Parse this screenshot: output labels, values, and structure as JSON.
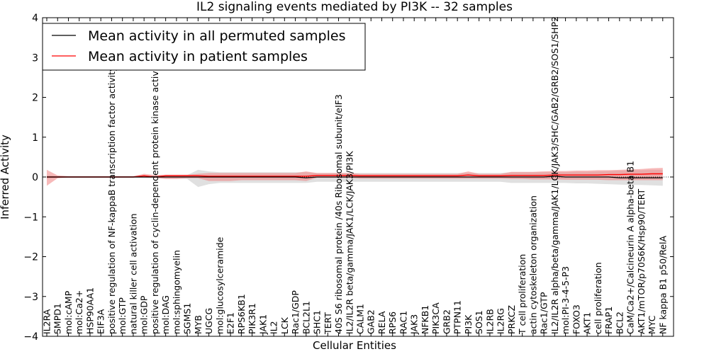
{
  "chart_data": {
    "type": "line",
    "title": "IL2 signaling events mediated by PI3K -- 32 samples",
    "xlabel": "Cellular Entities",
    "ylabel": "Inferred Activity",
    "ylim": [
      -4,
      4
    ],
    "yticks": [
      "4",
      "3",
      "2",
      "1",
      "0",
      "−1",
      "−2",
      "−3",
      "−4"
    ],
    "ytick_values": [
      4,
      3,
      2,
      1,
      0,
      -1,
      -2,
      -3,
      -4
    ],
    "legend_position": "top-left",
    "colors": {
      "permuted": "#000000",
      "permuted_band": "#bbbbbb",
      "patient": "#ff0000",
      "patient_band": "#f08080"
    },
    "categories": [
      "IL2RA",
      "SMPD1",
      "mol:cAMP",
      "mol:Ca2+",
      "HSP90AA1",
      "EIF3A",
      "positive regulation of NF-kappaB transcription factor activity",
      "mol:GTP",
      "natural killer cell activation",
      "mol:GDP",
      "positive regulation of cyclin-dependent protein kinase activity",
      "mol:DAG",
      "mol:sphingomyelin",
      "SGMS1",
      "MYB",
      "UGCG",
      "mol:glucosylceramide",
      "E2F1",
      "RPS6KB1",
      "PIK3R1",
      "JAK1",
      "IL2",
      "LCK",
      "Rac1/GDP",
      "BCL2L1",
      "SHC1",
      "TERT",
      "40S S6 ribosomal protein /40s Ribosomal subunit/eIF3",
      "IL2/IL2R beta/gamma/JAK1/LCK/JAK3/PI3K",
      "CALM1",
      "GAB2",
      "RELA",
      "RPS6",
      "RAC1",
      "JAK3",
      "NFKB1",
      "PIK3CA",
      "GRB2",
      "PTPN11",
      "PI3K",
      "SOS1",
      "IL2RB",
      "IL2RG",
      "PRKCZ",
      "T cell proliferation",
      "actin cytoskeleton organization",
      "Rac1/GTP",
      "IL2/IL2R alpha/beta/gamma/JAK1/LCK/JAK3/SHC/GAB2/GRB2/SOS1/SHP2",
      "mol:PI-3-4-5-P3",
      "FOXO3",
      "AKT1",
      "cell proliferation",
      "FRAP1",
      "BCL2",
      "CaM/Ca2+/Calcineurin A alpha-beta B1",
      "AKT1/mTOR/p70S6K/Hsp90/TERT",
      "MYC",
      "NF kappa B1 p50/RelA"
    ],
    "series": [
      {
        "name": "Mean activity in all permuted samples",
        "values": [
          0,
          0,
          0,
          0,
          0,
          0,
          0,
          0,
          0,
          0,
          0,
          0,
          0,
          0,
          0,
          0,
          0,
          0,
          0,
          0,
          0,
          0,
          0,
          0,
          -0.02,
          0,
          0,
          0,
          0,
          0,
          0,
          0,
          0,
          0,
          0,
          0,
          0,
          0,
          0,
          0,
          0,
          0,
          0,
          0,
          0,
          0,
          0,
          0.02,
          0,
          0,
          0,
          0,
          0,
          -0.02,
          -0.02,
          -0.02,
          -0.02,
          -0.02
        ],
        "band_lower": [
          -0.05,
          -0.02,
          -0.02,
          -0.02,
          -0.02,
          -0.02,
          -0.02,
          -0.02,
          -0.02,
          -0.03,
          -0.03,
          -0.04,
          -0.04,
          -0.05,
          -0.25,
          -0.18,
          -0.15,
          -0.15,
          -0.15,
          -0.15,
          -0.15,
          -0.15,
          -0.15,
          -0.15,
          -0.15,
          -0.12,
          -0.12,
          -0.12,
          -0.12,
          -0.12,
          -0.12,
          -0.12,
          -0.12,
          -0.12,
          -0.12,
          -0.12,
          -0.12,
          -0.12,
          -0.12,
          -0.12,
          -0.12,
          -0.12,
          -0.12,
          -0.15,
          -0.15,
          -0.15,
          -0.15,
          -0.15,
          -0.15,
          -0.16,
          -0.16,
          -0.17,
          -0.18,
          -0.19,
          -0.2,
          -0.2,
          -0.21,
          -0.22
        ],
        "band_upper": [
          0.05,
          0.02,
          0.02,
          0.02,
          0.02,
          0.02,
          0.02,
          0.02,
          0.02,
          0.03,
          0.03,
          0.04,
          0.04,
          0.05,
          0.18,
          0.14,
          0.12,
          0.12,
          0.12,
          0.12,
          0.12,
          0.12,
          0.12,
          0.12,
          0.12,
          0.1,
          0.1,
          0.1,
          0.1,
          0.1,
          0.1,
          0.1,
          0.1,
          0.1,
          0.1,
          0.1,
          0.1,
          0.1,
          0.1,
          0.1,
          0.1,
          0.1,
          0.1,
          0.12,
          0.12,
          0.12,
          0.12,
          0.12,
          0.12,
          0.13,
          0.13,
          0.14,
          0.15,
          0.16,
          0.17,
          0.17,
          0.18,
          0.18
        ]
      },
      {
        "name": "Mean activity in patient samples",
        "values": [
          0,
          0,
          0,
          0,
          0,
          0,
          0,
          0,
          0,
          0.03,
          0,
          0.03,
          0.03,
          0.03,
          0.03,
          0.02,
          0.02,
          0.02,
          0.02,
          0.02,
          0.02,
          0.02,
          0.02,
          0.02,
          0.02,
          0.04,
          0.04,
          0.04,
          0.04,
          0.03,
          0.03,
          0.03,
          0.03,
          0.03,
          0.03,
          0.03,
          0.03,
          0.03,
          0.03,
          0.05,
          0.03,
          0.03,
          0.03,
          0.04,
          0.04,
          0.04,
          0.04,
          0.05,
          0.05,
          0.05,
          0.05,
          0.05,
          0.06,
          0.06,
          0.07,
          0.07,
          0.08,
          0.08
        ],
        "band_lower": [
          -0.22,
          -0.03,
          -0.01,
          -0.01,
          -0.01,
          -0.01,
          -0.01,
          -0.01,
          -0.01,
          -0.01,
          -0.02,
          -0.05,
          -0.05,
          -0.03,
          -0.03,
          -0.1,
          -0.1,
          -0.1,
          -0.08,
          -0.08,
          -0.08,
          -0.08,
          -0.08,
          -0.08,
          -0.1,
          -0.02,
          -0.02,
          -0.02,
          -0.02,
          -0.04,
          -0.04,
          -0.04,
          -0.04,
          -0.04,
          -0.04,
          -0.04,
          -0.04,
          -0.04,
          -0.04,
          -0.04,
          -0.04,
          -0.04,
          -0.04,
          -0.05,
          -0.05,
          -0.06,
          -0.06,
          -0.06,
          -0.07,
          -0.07,
          -0.07,
          -0.07,
          -0.08,
          -0.08,
          -0.08,
          -0.08,
          -0.08,
          -0.08
        ],
        "band_upper": [
          0.18,
          0.04,
          0.02,
          0.02,
          0.02,
          0.02,
          0.02,
          0.02,
          0.02,
          0.08,
          0.05,
          0.06,
          0.06,
          0.06,
          0.08,
          0.1,
          0.1,
          0.1,
          0.1,
          0.1,
          0.1,
          0.1,
          0.1,
          0.1,
          0.14,
          0.1,
          0.1,
          0.1,
          0.1,
          0.08,
          0.08,
          0.08,
          0.08,
          0.08,
          0.08,
          0.08,
          0.08,
          0.08,
          0.08,
          0.14,
          0.08,
          0.08,
          0.08,
          0.13,
          0.13,
          0.13,
          0.14,
          0.15,
          0.15,
          0.16,
          0.16,
          0.17,
          0.17,
          0.18,
          0.19,
          0.2,
          0.22,
          0.23
        ]
      }
    ]
  }
}
